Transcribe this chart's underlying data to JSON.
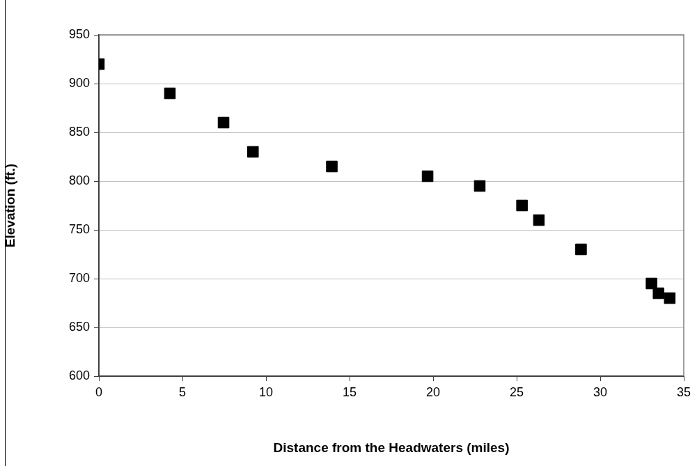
{
  "chart_data": {
    "type": "scatter",
    "xlabel": "Distance from the Headwaters (miles)",
    "ylabel": "Elevation (ft.)",
    "x": [
      0,
      4.25,
      7.46,
      9.22,
      13.94,
      19.67,
      22.79,
      25.32,
      26.33,
      28.85,
      33.07,
      33.49,
      34.16
    ],
    "values": [
      920,
      890,
      860,
      830,
      815,
      805,
      795,
      775,
      760,
      730,
      695,
      685,
      680
    ],
    "color": "#000000",
    "marker": "square",
    "grid": "y",
    "legend": false,
    "xlim": [
      0,
      35
    ],
    "xticks": [
      0,
      5,
      10,
      15,
      20,
      25,
      30,
      35
    ],
    "ylim": [
      600,
      950
    ],
    "yticks": [
      600,
      650,
      700,
      750,
      800,
      850,
      900,
      950
    ]
  }
}
